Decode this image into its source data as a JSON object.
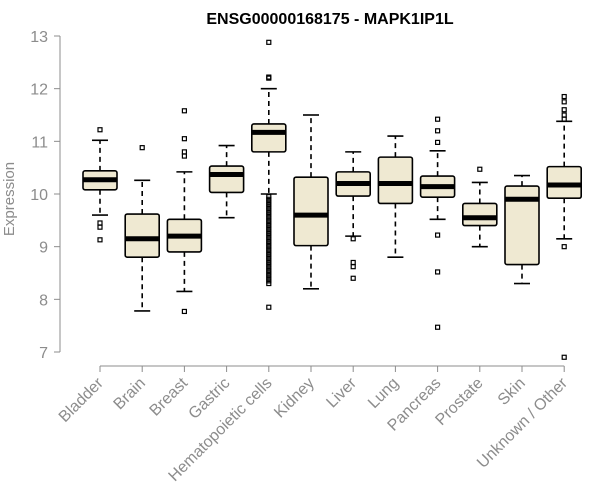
{
  "chart_data": {
    "type": "box",
    "title": "ENSG00000168175 - MAPK1IP1L",
    "xlabel": "",
    "ylabel": "Expression",
    "ylim": [
      6.7,
      13.1
    ],
    "yticks": [
      7,
      8,
      9,
      10,
      11,
      12,
      13
    ],
    "colors": {
      "box_fill": "#efe9d2",
      "axis": "#8c8c8c"
    },
    "categories": [
      "Bladder",
      "Brain",
      "Breast",
      "Gastric",
      "Hematopoietic cells",
      "Kidney",
      "Liver",
      "Lung",
      "Pancreas",
      "Prostate",
      "Skin",
      "Unknown / Other"
    ],
    "boxes": [
      {
        "name": "Bladder",
        "whisker_low": 9.6,
        "q1": 10.08,
        "median": 10.27,
        "q3": 10.44,
        "whisker_high": 11.02,
        "outliers": [
          11.22,
          9.45,
          9.37,
          9.13
        ]
      },
      {
        "name": "Brain",
        "whisker_low": 7.78,
        "q1": 8.8,
        "median": 9.15,
        "q3": 9.62,
        "whisker_high": 10.26,
        "outliers": [
          10.88
        ]
      },
      {
        "name": "Breast",
        "whisker_low": 8.15,
        "q1": 8.9,
        "median": 9.2,
        "q3": 9.52,
        "whisker_high": 10.42,
        "outliers": [
          11.58,
          11.05,
          10.8,
          10.72,
          7.77
        ]
      },
      {
        "name": "Gastric",
        "whisker_low": 9.55,
        "q1": 10.03,
        "median": 10.37,
        "q3": 10.53,
        "whisker_high": 10.92,
        "outliers": []
      },
      {
        "name": "Hematopoietic cells",
        "whisker_low": 10.0,
        "q1": 10.8,
        "median": 11.17,
        "q3": 11.33,
        "whisker_high": 12.0,
        "outliers": [
          12.88,
          12.22,
          12.2,
          9.95,
          9.9,
          9.85,
          9.8,
          9.75,
          9.7,
          9.65,
          9.6,
          9.55,
          9.5,
          9.45,
          9.4,
          9.35,
          9.3,
          9.25,
          9.2,
          9.15,
          9.1,
          9.05,
          9.0,
          8.95,
          8.9,
          8.85,
          8.8,
          8.75,
          8.7,
          8.65,
          8.6,
          8.55,
          8.5,
          8.45,
          8.4,
          8.35,
          8.3,
          7.85
        ]
      },
      {
        "name": "Kidney",
        "whisker_low": 8.2,
        "q1": 9.02,
        "median": 9.6,
        "q3": 10.32,
        "whisker_high": 11.5,
        "outliers": []
      },
      {
        "name": "Liver",
        "whisker_low": 9.2,
        "q1": 9.96,
        "median": 10.2,
        "q3": 10.42,
        "whisker_high": 10.8,
        "outliers": [
          9.15,
          8.7,
          8.62,
          8.4
        ]
      },
      {
        "name": "Lung",
        "whisker_low": 8.8,
        "q1": 9.82,
        "median": 10.2,
        "q3": 10.7,
        "whisker_high": 11.1,
        "outliers": []
      },
      {
        "name": "Pancreas",
        "whisker_low": 9.52,
        "q1": 9.94,
        "median": 10.14,
        "q3": 10.34,
        "whisker_high": 10.82,
        "outliers": [
          11.42,
          11.2,
          10.98,
          9.22,
          8.52,
          7.47
        ]
      },
      {
        "name": "Prostate",
        "whisker_low": 9.0,
        "q1": 9.4,
        "median": 9.55,
        "q3": 9.82,
        "whisker_high": 10.22,
        "outliers": [
          10.47
        ]
      },
      {
        "name": "Skin",
        "whisker_low": 8.3,
        "q1": 8.66,
        "median": 9.9,
        "q3": 10.15,
        "whisker_high": 10.35,
        "outliers": []
      },
      {
        "name": "Unknown / Other",
        "whisker_low": 9.15,
        "q1": 9.92,
        "median": 10.17,
        "q3": 10.52,
        "whisker_high": 11.38,
        "outliers": [
          11.85,
          11.75,
          11.6,
          11.5,
          11.42,
          9.0,
          6.9
        ]
      }
    ]
  }
}
